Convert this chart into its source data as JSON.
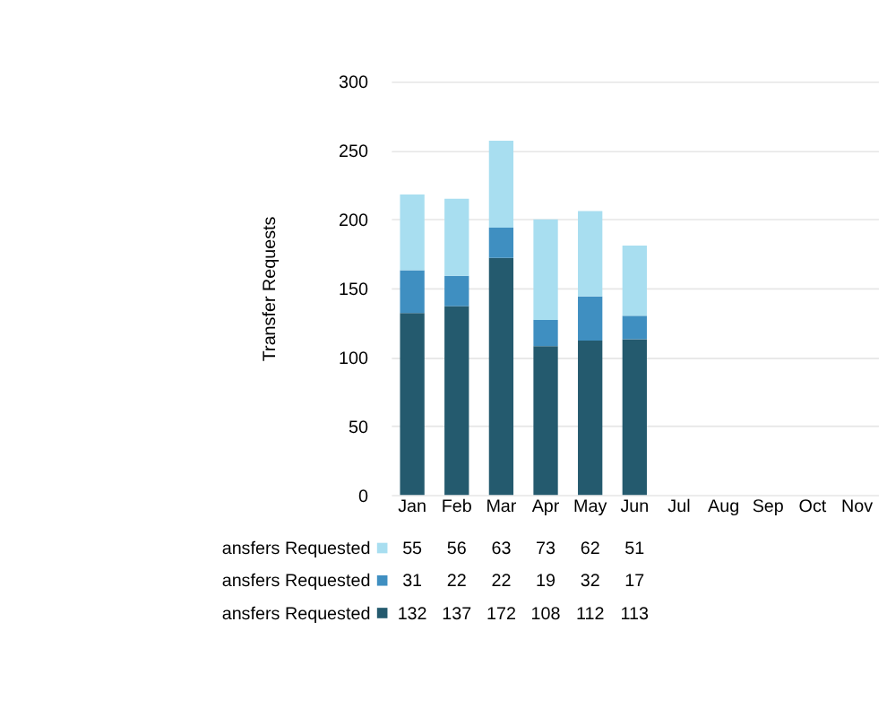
{
  "chart_data": {
    "type": "bar",
    "stacked": true,
    "ylabel": "Transfer Requests",
    "categories": [
      "Jan",
      "Feb",
      "Mar",
      "Apr",
      "May",
      "Jun",
      "Jul",
      "Aug",
      "Sep",
      "Oct",
      "Nov"
    ],
    "series": [
      {
        "name": "ansfers Requested",
        "color": "#245a6e",
        "values": [
          132,
          137,
          172,
          108,
          112,
          113,
          null,
          null,
          null,
          null,
          null
        ]
      },
      {
        "name": "ansfers Requested",
        "color": "#3f8fc1",
        "values": [
          31,
          22,
          22,
          19,
          32,
          17,
          null,
          null,
          null,
          null,
          null
        ]
      },
      {
        "name": "ansfers Requested",
        "color": "#a8def0",
        "values": [
          55,
          56,
          63,
          73,
          62,
          51,
          null,
          null,
          null,
          null,
          null
        ]
      }
    ],
    "ylim": [
      0,
      300
    ],
    "yticks": [
      0,
      50,
      100,
      150,
      200,
      250,
      300
    ],
    "grid": "y",
    "data_labels": true
  }
}
